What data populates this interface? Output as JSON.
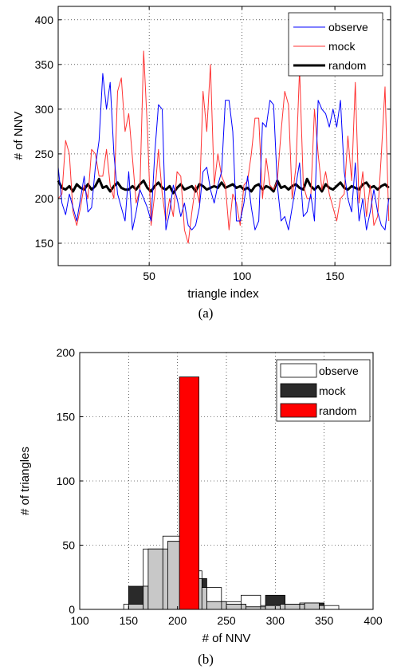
{
  "chart_data": [
    {
      "type": "line",
      "caption": "(a)",
      "xlabel": "triangle index",
      "ylabel": "# of NNV",
      "xlim": [
        1,
        180
      ],
      "ylim": [
        125,
        415
      ],
      "xticks": [
        50,
        100,
        150
      ],
      "yticks": [
        150,
        200,
        250,
        300,
        350,
        400
      ],
      "grid": true,
      "legend_position": "top-right",
      "legend": [
        "observe",
        "mock",
        "random"
      ],
      "colors": {
        "observe": "#0000ff",
        "mock": "#ff3333",
        "random": "#000000"
      },
      "series_x_step": 2,
      "series": [
        {
          "name": "observe",
          "values": [
            235,
            195,
            182,
            205,
            190,
            175,
            200,
            225,
            185,
            190,
            235,
            265,
            340,
            300,
            330,
            250,
            205,
            190,
            175,
            230,
            165,
            185,
            210,
            200,
            190,
            175,
            250,
            305,
            300,
            165,
            185,
            215,
            200,
            180,
            195,
            170,
            165,
            170,
            190,
            230,
            235,
            210,
            195,
            215,
            230,
            310,
            310,
            275,
            175,
            175,
            195,
            225,
            190,
            165,
            175,
            285,
            280,
            310,
            305,
            215,
            175,
            180,
            165,
            190,
            215,
            240,
            180,
            185,
            205,
            175,
            310,
            300,
            295,
            280,
            300,
            280,
            310,
            230,
            200,
            185,
            240,
            175,
            200,
            165,
            185,
            210,
            185,
            170,
            165,
            200
          ]
        },
        {
          "name": "mock",
          "values": [
            200,
            205,
            265,
            250,
            185,
            170,
            190,
            215,
            200,
            255,
            250,
            225,
            225,
            255,
            215,
            200,
            320,
            335,
            275,
            295,
            245,
            195,
            210,
            365,
            280,
            170,
            205,
            255,
            205,
            175,
            200,
            180,
            230,
            225,
            165,
            150,
            185,
            215,
            195,
            320,
            275,
            350,
            215,
            250,
            225,
            215,
            165,
            205,
            195,
            170,
            215,
            220,
            250,
            290,
            290,
            200,
            245,
            215,
            210,
            220,
            275,
            320,
            305,
            200,
            235,
            345,
            215,
            200,
            200,
            300,
            250,
            210,
            230,
            205,
            190,
            175,
            200,
            205,
            270,
            220,
            330,
            195,
            230,
            180,
            215,
            170,
            180,
            250,
            325,
            175
          ]
        },
        {
          "name": "random",
          "values": [
            220,
            212,
            210,
            214,
            208,
            216,
            212,
            210,
            216,
            210,
            214,
            222,
            212,
            214,
            208,
            214,
            218,
            212,
            210,
            210,
            214,
            210,
            216,
            220,
            212,
            208,
            214,
            218,
            212,
            210,
            214,
            206,
            212,
            216,
            210,
            212,
            214,
            208,
            216,
            214,
            210,
            212,
            214,
            212,
            218,
            212,
            214,
            216,
            212,
            214,
            210,
            212,
            208,
            214,
            216,
            210,
            214,
            212,
            208,
            220,
            212,
            214,
            210,
            214,
            216,
            212,
            210,
            222,
            214,
            210,
            214,
            208,
            216,
            212,
            210,
            214,
            218,
            212,
            210,
            214,
            212,
            210,
            216,
            218,
            212,
            214,
            210,
            214,
            216,
            212
          ]
        }
      ]
    },
    {
      "type": "bar",
      "caption": "(b)",
      "xlabel": "# of NNV",
      "ylabel": "# of triangles",
      "xlim": [
        100,
        400
      ],
      "ylim": [
        0,
        200
      ],
      "xticks": [
        100,
        150,
        200,
        250,
        300,
        350,
        400
      ],
      "yticks": [
        0,
        50,
        100,
        150,
        200
      ],
      "grid": true,
      "legend_position": "top-right",
      "legend": [
        "observe",
        "mock",
        "random"
      ],
      "colors": {
        "observe": "#ffffff",
        "mock": "#2a2a2a",
        "random": "#ff0000",
        "overlap": "#c8c8c8"
      },
      "bin_width": 20,
      "series": [
        {
          "name": "observe",
          "bin_centers": [
            155,
            175,
            195,
            215,
            235,
            255,
            275,
            295,
            315,
            335,
            355
          ],
          "values": [
            4,
            47,
            57,
            30,
            17,
            6,
            11,
            3,
            4,
            5,
            3
          ]
        },
        {
          "name": "mock",
          "bin_centers": [
            160,
            180,
            200,
            220,
            240,
            260,
            280,
            300,
            320,
            340
          ],
          "values": [
            18,
            47,
            53,
            24,
            6,
            4,
            2,
            11,
            4,
            5
          ]
        },
        {
          "name": "random",
          "bin_centers": [
            212
          ],
          "values": [
            181
          ]
        }
      ]
    }
  ]
}
